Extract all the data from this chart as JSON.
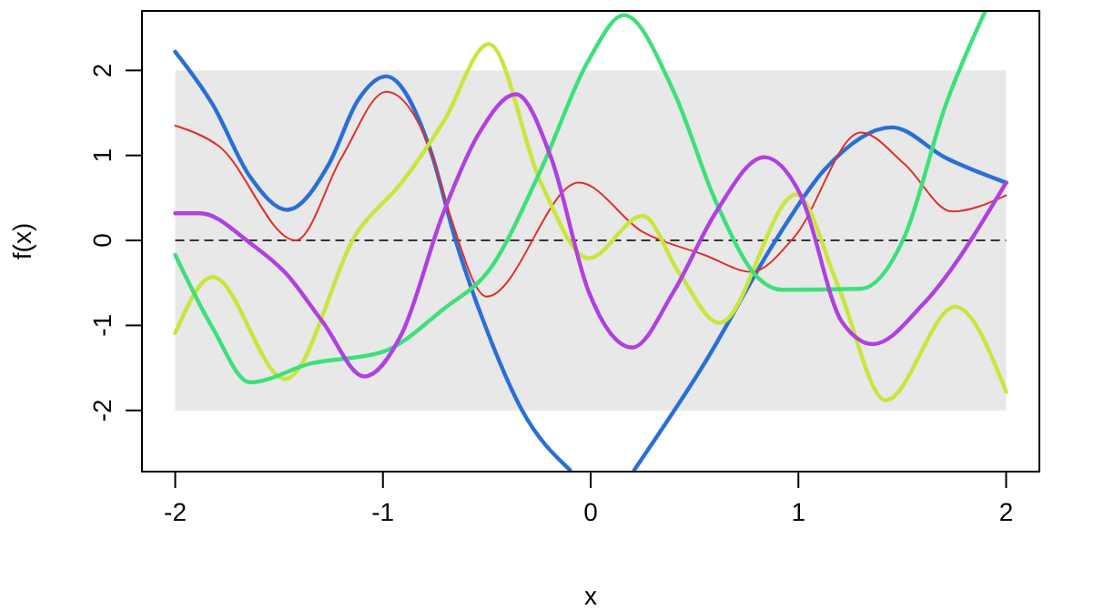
{
  "chart_data": {
    "type": "line",
    "xlabel": "x",
    "ylabel": "f(x)",
    "xlim": [
      -2.16,
      2.16
    ],
    "ylim": [
      -2.72,
      2.7
    ],
    "xticks": [
      -2,
      -1,
      0,
      1,
      2
    ],
    "yticks": [
      -2,
      -1,
      0,
      1,
      2
    ],
    "grid": false,
    "marker": "none",
    "line_style": "solid",
    "bands": [
      {
        "axis": "y",
        "from": -2,
        "to": 2,
        "color": "#e8e8e8"
      }
    ],
    "ref_lines": [
      {
        "axis": "y",
        "value": 0,
        "color": "#333333",
        "line_style": "dashed"
      }
    ],
    "series": [
      {
        "color": "#2a6fd6",
        "x": [
          -2,
          -1.82,
          -1.64,
          -1.46,
          -1.26,
          -1.12,
          -0.985,
          -0.77,
          -0.65,
          -0.48,
          -0.33,
          -0.1,
          0.05,
          0.21,
          0.547,
          0.89,
          1.125,
          1.45,
          1.71,
          2
        ],
        "values": [
          2.22,
          1.6,
          0.75,
          0.36,
          0.9,
          1.65,
          1.93,
          1.05,
          0,
          -1.18,
          -2.0,
          -2.7,
          null,
          -2.7,
          -1.45,
          0,
          0.83,
          1.33,
          0.97,
          0.68
        ]
      },
      {
        "color": "#e0302c",
        "x": [
          -2,
          -1.79,
          -1.42,
          -1.2,
          -0.985,
          -0.77,
          -0.68,
          -0.5,
          -0.057,
          0.25,
          0.547,
          0.775,
          0.98,
          1.3,
          1.51,
          1.74,
          2
        ],
        "values": [
          1.35,
          1.11,
          0,
          0.97,
          1.75,
          1.05,
          0.32,
          -0.66,
          0.68,
          0.1,
          -0.17,
          -0.37,
          0.04,
          1.27,
          0.9,
          0.34,
          0.53
        ]
      },
      {
        "color": "#c8e63c",
        "x": [
          -2,
          -1.82,
          -1.47,
          -1.12,
          -0.91,
          -0.71,
          -0.49,
          -0.24,
          -0.01,
          0.25,
          0.425,
          0.62,
          0.99,
          1.19,
          1.42,
          1.755,
          2
        ],
        "values": [
          -1.09,
          -0.43,
          -1.63,
          0.11,
          0.68,
          1.39,
          2.31,
          0.68,
          -0.21,
          0.29,
          -0.38,
          -0.97,
          0.54,
          -0.53,
          -1.88,
          -0.78,
          -1.78
        ]
      },
      {
        "color": "#3de07a",
        "x": [
          -2,
          -1.82,
          -1.64,
          -1.35,
          -1.0,
          -0.71,
          -0.48,
          -0.24,
          -0.01,
          0.16,
          0.4,
          0.6,
          0.81,
          0.92,
          1.3,
          1.51,
          1.71,
          1.9
        ],
        "values": [
          -0.17,
          -1.03,
          -1.67,
          -1.45,
          -1.31,
          -0.81,
          -0.32,
          0.83,
          2.12,
          2.65,
          1.75,
          0.47,
          -0.45,
          -0.58,
          -0.57,
          0.04,
          1.6,
          2.7
        ]
      },
      {
        "color": "#b040e0",
        "x": [
          -2,
          -1.88,
          -1.64,
          -1.47,
          -1.29,
          -1.09,
          -0.91,
          -0.71,
          -0.54,
          -0.36,
          -0.19,
          -0.01,
          0.2,
          0.4,
          0.6,
          0.835,
          1.01,
          1.21,
          1.36,
          1.6,
          2
        ],
        "values": [
          0.32,
          0.32,
          -0.03,
          -0.38,
          -0.96,
          -1.6,
          -1.1,
          0.32,
          1.25,
          1.72,
          0.97,
          -0.6,
          -1.26,
          -0.6,
          0.32,
          0.98,
          0.54,
          -0.96,
          -1.22,
          -0.75,
          0.68
        ]
      }
    ]
  }
}
